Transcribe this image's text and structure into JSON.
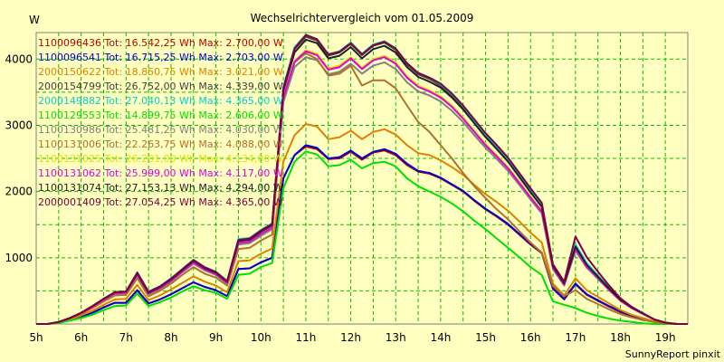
{
  "chart_data": {
    "type": "line",
    "title": "Wechselrichtervergleich vom 01.05.2009",
    "ylabel": "W",
    "xlabel": "",
    "footer": "SunnyReport pinxit",
    "x_ticks": [
      "5h",
      "6h",
      "7h",
      "8h",
      "9h",
      "10h",
      "11h",
      "12h",
      "13h",
      "14h",
      "15h",
      "16h",
      "17h",
      "18h",
      "19h"
    ],
    "y_ticks": [
      "1000",
      "2000",
      "3000",
      "4000"
    ],
    "xlim": [
      5,
      19.5
    ],
    "ylim": [
      0,
      4400
    ],
    "grid": true,
    "legend_position": "top-left",
    "x": [
      5.25,
      5.5,
      5.75,
      6,
      6.25,
      6.5,
      6.75,
      7,
      7.25,
      7.5,
      7.75,
      8,
      8.25,
      8.5,
      8.75,
      9,
      9.25,
      9.5,
      9.75,
      10,
      10.25,
      10.5,
      10.75,
      11,
      11.25,
      11.5,
      11.75,
      12,
      12.25,
      12.5,
      12.75,
      13,
      13.25,
      13.5,
      13.75,
      14,
      14.25,
      14.5,
      14.75,
      15,
      15.25,
      15.5,
      15.75,
      16,
      16.25,
      16.5,
      16.75,
      17,
      17.25,
      17.5,
      17.75,
      18,
      18.25,
      18.5,
      18.75,
      19,
      19.25,
      19.5
    ],
    "series": [
      {
        "name": "1100096436 Tot: 16.542,25 Wh Max: 2.700,00 W",
        "color": "#c00000",
        "values": [
          0,
          20,
          60,
          110,
          170,
          250,
          320,
          320,
          510,
          310,
          370,
          450,
          540,
          630,
          560,
          510,
          420,
          830,
          840,
          930,
          1000,
          2200,
          2550,
          2680,
          2640,
          2490,
          2500,
          2600,
          2480,
          2590,
          2620,
          2550,
          2400,
          2300,
          2270,
          2200,
          2100,
          2000,
          1860,
          1730,
          1620,
          1500,
          1350,
          1200,
          1070,
          530,
          370,
          600,
          440,
          350,
          260,
          180,
          120,
          70,
          30,
          10,
          0,
          0
        ]
      },
      {
        "name": "1100096541 Tot: 16.715,25 Wh Max: 2.703,00 W",
        "color": "#0000d0",
        "values": [
          0,
          20,
          60,
          110,
          170,
          250,
          320,
          320,
          510,
          310,
          370,
          450,
          540,
          630,
          560,
          510,
          420,
          830,
          840,
          930,
          1000,
          2200,
          2550,
          2700,
          2660,
          2500,
          2520,
          2620,
          2500,
          2600,
          2640,
          2570,
          2420,
          2310,
          2280,
          2210,
          2110,
          2010,
          1870,
          1740,
          1630,
          1510,
          1360,
          1210,
          1080,
          540,
          380,
          610,
          450,
          360,
          270,
          190,
          130,
          80,
          40,
          10,
          0,
          0
        ]
      },
      {
        "name": "2000150622 Tot: 18.850,75 Wh Max: 3.021,00 W",
        "color": "#e08000",
        "values": [
          0,
          25,
          70,
          130,
          200,
          290,
          370,
          380,
          590,
          360,
          430,
          520,
          620,
          720,
          640,
          580,
          480,
          950,
          960,
          1060,
          1140,
          2450,
          2850,
          3020,
          2980,
          2790,
          2820,
          2920,
          2790,
          2900,
          2940,
          2860,
          2700,
          2580,
          2550,
          2470,
          2370,
          2250,
          2100,
          1960,
          1840,
          1710,
          1550,
          1380,
          1230,
          610,
          430,
          690,
          510,
          410,
          310,
          210,
          140,
          90,
          40,
          10,
          0,
          0
        ]
      },
      {
        "name": "2000154799 Tot: 26.752,00 Wh Max: 4.339,00 W",
        "color": "#404040",
        "values": [
          0,
          30,
          90,
          170,
          270,
          380,
          480,
          490,
          770,
          480,
          560,
          680,
          820,
          960,
          850,
          780,
          640,
          1260,
          1280,
          1400,
          1500,
          3550,
          4150,
          4339,
          4280,
          4050,
          4100,
          4230,
          4060,
          4200,
          4250,
          4140,
          3920,
          3770,
          3700,
          3600,
          3450,
          3270,
          3050,
          2840,
          2660,
          2470,
          2240,
          2000,
          1780,
          880,
          620,
          1180,
          900,
          720,
          540,
          370,
          250,
          160,
          70,
          20,
          0,
          0
        ]
      },
      {
        "name": "2000149882 Tot: 27.040,13 Wh Max: 4.365,00 W",
        "color": "#00d0d0",
        "values": [
          0,
          30,
          90,
          170,
          270,
          380,
          480,
          490,
          780,
          490,
          570,
          690,
          830,
          970,
          860,
          790,
          650,
          1280,
          1300,
          1420,
          1520,
          3580,
          4180,
          4365,
          4300,
          4070,
          4120,
          4250,
          4080,
          4220,
          4270,
          4160,
          3940,
          3790,
          3720,
          3620,
          3470,
          3290,
          3070,
          2860,
          2680,
          2490,
          2260,
          2020,
          1800,
          890,
          630,
          1200,
          920,
          730,
          550,
          380,
          260,
          170,
          70,
          20,
          0,
          0
        ]
      },
      {
        "name": "1100129553 Tot: 14.899,75 Wh Max: 2.606,00 W",
        "color": "#00e000",
        "values": [
          0,
          15,
          50,
          90,
          140,
          210,
          270,
          280,
          460,
          270,
          330,
          400,
          490,
          570,
          510,
          470,
          380,
          740,
          760,
          860,
          920,
          2050,
          2450,
          2606,
          2560,
          2380,
          2400,
          2480,
          2350,
          2430,
          2450,
          2380,
          2200,
          2080,
          2000,
          1920,
          1820,
          1700,
          1560,
          1430,
          1290,
          1150,
          1010,
          860,
          740,
          340,
          290,
          240,
          170,
          120,
          80,
          50,
          30,
          10,
          0,
          0,
          0,
          0
        ]
      },
      {
        "name": "1100130986 Tot: 25.481,25 Wh Max: 4.030,00 W",
        "color": "#808080",
        "values": [
          0,
          30,
          85,
          160,
          255,
          360,
          455,
          465,
          730,
          450,
          530,
          640,
          780,
          910,
          810,
          740,
          610,
          1200,
          1220,
          1330,
          1430,
          3350,
          3880,
          4030,
          3980,
          3770,
          3810,
          3930,
          3780,
          3900,
          3950,
          3850,
          3650,
          3510,
          3450,
          3360,
          3220,
          3050,
          2850,
          2660,
          2490,
          2310,
          2100,
          1880,
          1670,
          830,
          580,
          1110,
          850,
          680,
          510,
          350,
          240,
          150,
          70,
          20,
          0,
          0
        ]
      },
      {
        "name": "1100131006 Tot: 22.263,75 Wh Max: 4.088,00 W",
        "color": "#b07030",
        "values": [
          0,
          28,
          80,
          150,
          240,
          340,
          430,
          440,
          690,
          420,
          500,
          610,
          740,
          860,
          760,
          700,
          580,
          1130,
          1150,
          1260,
          1350,
          3400,
          3950,
          4088,
          4000,
          3750,
          3780,
          3900,
          3600,
          3680,
          3680,
          3560,
          3300,
          3050,
          2900,
          2700,
          2500,
          2280,
          2080,
          1900,
          1730,
          1580,
          1400,
          1230,
          1080,
          570,
          420,
          510,
          380,
          300,
          220,
          150,
          100,
          60,
          30,
          10,
          0,
          0
        ]
      },
      {
        "name": "1100131025 Tot: 26.201,00 Wh Max: 4.134,00 W",
        "color": "#e0e000",
        "values": [
          0,
          30,
          88,
          165,
          262,
          370,
          468,
          478,
          750,
          465,
          545,
          660,
          800,
          935,
          830,
          760,
          625,
          1230,
          1250,
          1365,
          1465,
          3430,
          3970,
          4134,
          4080,
          3860,
          3900,
          4030,
          3870,
          4000,
          4050,
          3950,
          3740,
          3600,
          3530,
          3440,
          3300,
          3120,
          2920,
          2720,
          2550,
          2370,
          2150,
          1930,
          1710,
          850,
          600,
          1140,
          870,
          700,
          520,
          360,
          240,
          160,
          70,
          20,
          0,
          0
        ]
      },
      {
        "name": "1100131062 Tot: 25.999,00 Wh Max: 4.117,00 W",
        "color": "#e000e0",
        "values": [
          0,
          30,
          87,
          164,
          260,
          368,
          465,
          475,
          745,
          462,
          542,
          656,
          795,
          930,
          825,
          756,
          622,
          1225,
          1245,
          1360,
          1460,
          3420,
          3960,
          4117,
          4060,
          3840,
          3880,
          4010,
          3850,
          3980,
          4030,
          3930,
          3720,
          3580,
          3510,
          3420,
          3280,
          3100,
          2900,
          2700,
          2530,
          2350,
          2130,
          1910,
          1700,
          845,
          595,
          1130,
          865,
          695,
          515,
          355,
          240,
          155,
          70,
          20,
          0,
          0
        ]
      },
      {
        "name": "1100131074 Tot: 27.153,13 Wh Max: 4.294,00 W",
        "color": "#202020",
        "values": [
          0,
          30,
          90,
          170,
          268,
          378,
          478,
          488,
          765,
          475,
          557,
          675,
          815,
          955,
          845,
          775,
          640,
          1255,
          1275,
          1395,
          1495,
          3520,
          4100,
          4294,
          4240,
          4010,
          4050,
          4180,
          4010,
          4150,
          4200,
          4100,
          3880,
          3730,
          3660,
          3570,
          3420,
          3240,
          3030,
          2820,
          2640,
          2450,
          2220,
          1990,
          1770,
          875,
          615,
          1170,
          895,
          715,
          535,
          370,
          250,
          160,
          70,
          20,
          0,
          0
        ]
      },
      {
        "name": "2000001409 Tot: 27.054,25 Wh Max: 4.365,00 W",
        "color": "#800040",
        "values": [
          0,
          30,
          90,
          170,
          270,
          380,
          480,
          490,
          775,
          485,
          565,
          685,
          825,
          965,
          855,
          785,
          648,
          1270,
          1290,
          1410,
          1510,
          3560,
          4160,
          4365,
          4300,
          4070,
          4110,
          4240,
          4070,
          4210,
          4260,
          4160,
          3940,
          3790,
          3720,
          3630,
          3480,
          3300,
          3090,
          2880,
          2700,
          2510,
          2280,
          2050,
          1830,
          900,
          640,
          1320,
          1010,
          790,
          580,
          390,
          260,
          160,
          70,
          20,
          0,
          0
        ]
      }
    ]
  }
}
